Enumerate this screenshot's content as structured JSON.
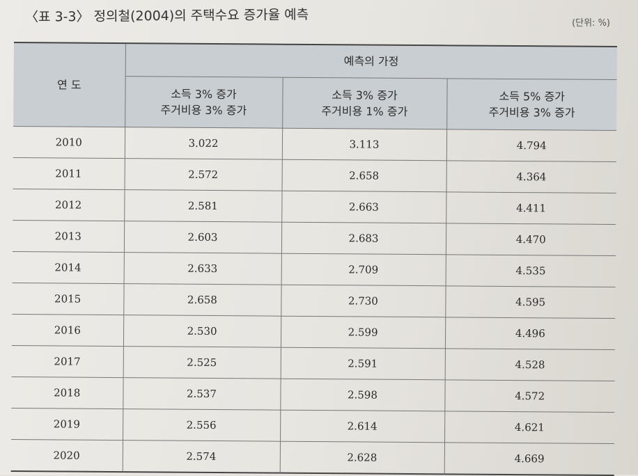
{
  "caption": "〈표 3-3〉 정의철(2004)의 주택수요 증가율 예측",
  "unit": "(단위: %)",
  "table": {
    "year_header": "연 도",
    "group_header": "예측의 가정",
    "scenarios": [
      {
        "line1": "소득 3% 증가",
        "line2": "주거비용 3% 증가"
      },
      {
        "line1": "소득 3% 증가",
        "line2": "주거비용 1% 증가"
      },
      {
        "line1": "소득 5% 증가",
        "line2": "주거비용 3% 증가"
      }
    ],
    "rows": [
      {
        "year": "2010",
        "values": [
          "3.022",
          "3.113",
          "4.794"
        ]
      },
      {
        "year": "2011",
        "values": [
          "2.572",
          "2.658",
          "4.364"
        ]
      },
      {
        "year": "2012",
        "values": [
          "2.581",
          "2.663",
          "4.411"
        ]
      },
      {
        "year": "2013",
        "values": [
          "2.603",
          "2.683",
          "4.470"
        ]
      },
      {
        "year": "2014",
        "values": [
          "2.633",
          "2.709",
          "4.535"
        ]
      },
      {
        "year": "2015",
        "values": [
          "2.658",
          "2.730",
          "4.595"
        ]
      },
      {
        "year": "2016",
        "values": [
          "2.530",
          "2.599",
          "4.496"
        ]
      },
      {
        "year": "2017",
        "values": [
          "2.525",
          "2.591",
          "4.528"
        ]
      },
      {
        "year": "2018",
        "values": [
          "2.537",
          "2.598",
          "4.572"
        ]
      },
      {
        "year": "2019",
        "values": [
          "2.556",
          "2.614",
          "4.621"
        ]
      },
      {
        "year": "2020",
        "values": [
          "2.574",
          "2.628",
          "4.669"
        ]
      }
    ]
  }
}
